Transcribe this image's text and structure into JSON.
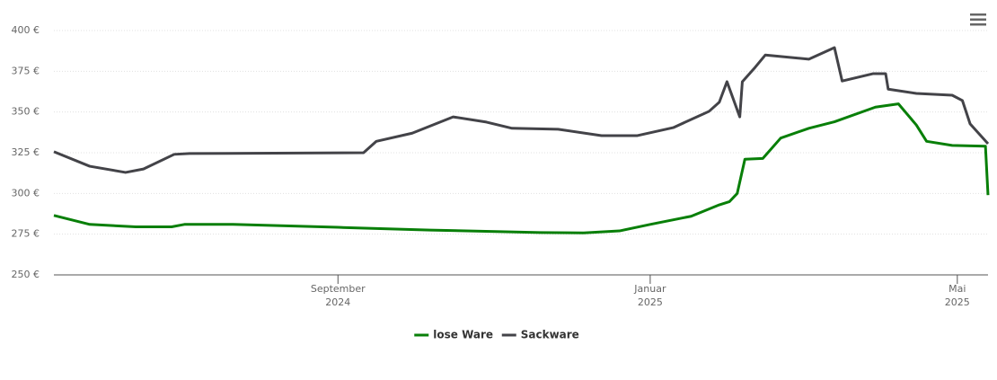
{
  "chart_data": {
    "type": "line",
    "xlim": [
      0,
      365
    ],
    "xticks": [
      {
        "value": 111,
        "label": "September 2024"
      },
      {
        "value": 233,
        "label": "Januar 2025"
      },
      {
        "value": 353,
        "label": "Mai 2025"
      }
    ],
    "ylim": [
      250,
      400
    ],
    "yticks": [
      {
        "value": 250,
        "label": "250 €"
      },
      {
        "value": 275,
        "label": "275 €"
      },
      {
        "value": 300,
        "label": "300 €"
      },
      {
        "value": 325,
        "label": "325 €"
      },
      {
        "value": 350,
        "label": "350 €"
      },
      {
        "value": 375,
        "label": "375 €"
      },
      {
        "value": 400,
        "label": "400 €"
      }
    ],
    "grid": true,
    "legend": "bottom",
    "series": [
      {
        "name": "lose Ware",
        "color": "#087f08",
        "x": [
          0,
          14,
          32,
          46,
          51,
          70,
          111,
          147,
          190,
          207,
          221,
          233,
          249,
          260,
          264,
          267,
          270,
          277,
          284,
          295,
          305,
          321,
          330,
          337,
          341,
          351,
          364,
          365
        ],
        "values": [
          286.5,
          281,
          279.5,
          279.5,
          281,
          281,
          279.2,
          277.5,
          276,
          275.8,
          277,
          281,
          286,
          293,
          295,
          300,
          321,
          321.5,
          334,
          340,
          344,
          353,
          355,
          342,
          332,
          329.5,
          329,
          299
        ]
      },
      {
        "name": "Sackware",
        "color": "#434348",
        "x": [
          0,
          14,
          28,
          35,
          47,
          53,
          121,
          126,
          140,
          156,
          169,
          179,
          197,
          214,
          228,
          242,
          256,
          260,
          263,
          268,
          269,
          274,
          278,
          295,
          305,
          308,
          320,
          325,
          326,
          337,
          351,
          355,
          358,
          365
        ],
        "values": [
          325.6,
          316.7,
          312.9,
          315,
          324,
          324.5,
          325,
          332,
          337,
          347,
          343.8,
          340,
          339.4,
          335.5,
          335.5,
          340.4,
          350.4,
          356,
          368.6,
          347,
          368.6,
          377.4,
          385,
          382.4,
          389.5,
          369,
          373.5,
          373.5,
          364,
          361.4,
          360.3,
          357,
          342.7,
          330.5
        ]
      }
    ]
  }
}
